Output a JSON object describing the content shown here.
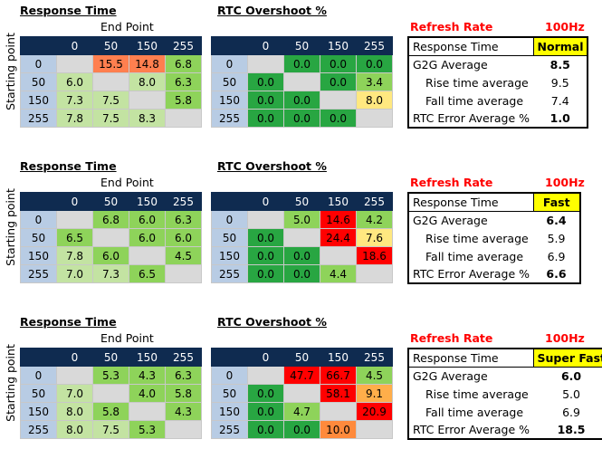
{
  "blocks": [
    {
      "response_title": "Response Time",
      "end_point": "End Point",
      "starting_point": "Starting point",
      "rtc_title": "RTC Overshoot %",
      "refresh_label": "Refresh Rate",
      "refresh_value": "100Hz",
      "response_header": [
        "",
        "0",
        "50",
        "150",
        "255"
      ],
      "response_rows": [
        {
          "start": "0",
          "cells": [
            "",
            "15.5",
            "14.8",
            "6.8"
          ],
          "classes": [
            "blank",
            "o1",
            "o1",
            "g2"
          ]
        },
        {
          "start": "50",
          "cells": [
            "6.0",
            "",
            "8.0",
            "6.3"
          ],
          "classes": [
            "g1",
            "blank",
            "g1",
            "g2"
          ]
        },
        {
          "start": "150",
          "cells": [
            "7.3",
            "7.5",
            "",
            "5.8"
          ],
          "classes": [
            "g1",
            "g1",
            "blank",
            "g2"
          ]
        },
        {
          "start": "255",
          "cells": [
            "7.8",
            "7.5",
            "8.3",
            ""
          ],
          "classes": [
            "g1",
            "g1",
            "g1",
            "blank"
          ]
        }
      ],
      "rtc_header": [
        "",
        "0",
        "50",
        "150",
        "255"
      ],
      "rtc_rows": [
        {
          "start": "0",
          "cells": [
            "",
            "0.0",
            "0.0",
            "0.0"
          ],
          "classes": [
            "blank",
            "g3",
            "g3",
            "g3"
          ]
        },
        {
          "start": "50",
          "cells": [
            "0.0",
            "",
            "0.0",
            "3.4"
          ],
          "classes": [
            "g3",
            "blank",
            "g3",
            "g2"
          ]
        },
        {
          "start": "150",
          "cells": [
            "0.0",
            "0.0",
            "",
            "8.0"
          ],
          "classes": [
            "g3",
            "g3",
            "blank",
            "y1"
          ]
        },
        {
          "start": "255",
          "cells": [
            "0.0",
            "0.0",
            "0.0",
            ""
          ],
          "classes": [
            "g3",
            "g3",
            "g3",
            "blank"
          ]
        }
      ],
      "summary": {
        "response_time_label": "Response Time",
        "mode": "Normal",
        "g2g_label": "G2G Average",
        "g2g": "8.5",
        "rise_label": "Rise time average",
        "rise": "9.5",
        "fall_label": "Fall time average",
        "fall": "7.4",
        "rtc_err_label": "RTC Error Average %",
        "rtc_err": "1.0"
      }
    },
    {
      "response_title": "Response Time",
      "end_point": "End Point",
      "starting_point": "Starting point",
      "rtc_title": "RTC Overshoot %",
      "refresh_label": "Refresh Rate",
      "refresh_value": "100Hz",
      "response_header": [
        "",
        "0",
        "50",
        "150",
        "255"
      ],
      "response_rows": [
        {
          "start": "0",
          "cells": [
            "",
            "6.8",
            "6.0",
            "6.3"
          ],
          "classes": [
            "blank",
            "g2",
            "g2",
            "g2"
          ]
        },
        {
          "start": "50",
          "cells": [
            "6.5",
            "",
            "6.0",
            "6.0"
          ],
          "classes": [
            "g2",
            "blank",
            "g2",
            "g2"
          ]
        },
        {
          "start": "150",
          "cells": [
            "7.8",
            "6.0",
            "",
            "4.5"
          ],
          "classes": [
            "g1",
            "g2",
            "blank",
            "g2"
          ]
        },
        {
          "start": "255",
          "cells": [
            "7.0",
            "7.3",
            "6.5",
            ""
          ],
          "classes": [
            "g1",
            "g1",
            "g2",
            "blank"
          ]
        }
      ],
      "rtc_header": [
        "",
        "0",
        "50",
        "150",
        "255"
      ],
      "rtc_rows": [
        {
          "start": "0",
          "cells": [
            "",
            "5.0",
            "14.6",
            "4.2"
          ],
          "classes": [
            "blank",
            "g2",
            "r1",
            "g2"
          ]
        },
        {
          "start": "50",
          "cells": [
            "0.0",
            "",
            "24.4",
            "7.6"
          ],
          "classes": [
            "g3",
            "blank",
            "r1",
            "y1"
          ]
        },
        {
          "start": "150",
          "cells": [
            "0.0",
            "0.0",
            "",
            "18.6"
          ],
          "classes": [
            "g3",
            "g3",
            "blank",
            "r1"
          ]
        },
        {
          "start": "255",
          "cells": [
            "0.0",
            "0.0",
            "4.4",
            ""
          ],
          "classes": [
            "g3",
            "g3",
            "g2",
            "blank"
          ]
        }
      ],
      "summary": {
        "response_time_label": "Response Time",
        "mode": "Fast",
        "g2g_label": "G2G Average",
        "g2g": "6.4",
        "rise_label": "Rise time average",
        "rise": "5.9",
        "fall_label": "Fall time average",
        "fall": "6.9",
        "rtc_err_label": "RTC Error Average %",
        "rtc_err": "6.6"
      }
    },
    {
      "response_title": "Response Time",
      "end_point": "End Point",
      "starting_point": "Starting point",
      "rtc_title": "RTC Overshoot %",
      "refresh_label": "Refresh Rate",
      "refresh_value": "100Hz",
      "response_header": [
        "",
        "0",
        "50",
        "150",
        "255"
      ],
      "response_rows": [
        {
          "start": "0",
          "cells": [
            "",
            "5.3",
            "4.3",
            "6.3"
          ],
          "classes": [
            "blank",
            "g2",
            "g2",
            "g2"
          ]
        },
        {
          "start": "50",
          "cells": [
            "7.0",
            "",
            "4.0",
            "5.8"
          ],
          "classes": [
            "g1",
            "blank",
            "g2",
            "g2"
          ]
        },
        {
          "start": "150",
          "cells": [
            "8.0",
            "5.8",
            "",
            "4.3"
          ],
          "classes": [
            "g1",
            "g2",
            "blank",
            "g2"
          ]
        },
        {
          "start": "255",
          "cells": [
            "8.0",
            "7.5",
            "5.3",
            ""
          ],
          "classes": [
            "g1",
            "g1",
            "g2",
            "blank"
          ]
        }
      ],
      "rtc_header": [
        "",
        "0",
        "50",
        "150",
        "255"
      ],
      "rtc_rows": [
        {
          "start": "0",
          "cells": [
            "",
            "47.7",
            "66.7",
            "4.5"
          ],
          "classes": [
            "blank",
            "r1",
            "r1",
            "g2"
          ]
        },
        {
          "start": "50",
          "cells": [
            "0.0",
            "",
            "58.1",
            "9.1"
          ],
          "classes": [
            "g3",
            "blank",
            "r1",
            "o2"
          ]
        },
        {
          "start": "150",
          "cells": [
            "0.0",
            "4.7",
            "",
            "20.9"
          ],
          "classes": [
            "g3",
            "g2",
            "blank",
            "r1"
          ]
        },
        {
          "start": "255",
          "cells": [
            "0.0",
            "0.0",
            "10.0",
            ""
          ],
          "classes": [
            "g3",
            "g3",
            "o3",
            "blank"
          ]
        }
      ],
      "summary": {
        "response_time_label": "Response Time",
        "mode": "Super Fast",
        "g2g_label": "G2G Average",
        "g2g": "6.0",
        "rise_label": "Rise time average",
        "rise": "5.0",
        "fall_label": "Fall time average",
        "fall": "6.9",
        "rtc_err_label": "RTC Error Average %",
        "rtc_err": "18.5"
      }
    }
  ]
}
